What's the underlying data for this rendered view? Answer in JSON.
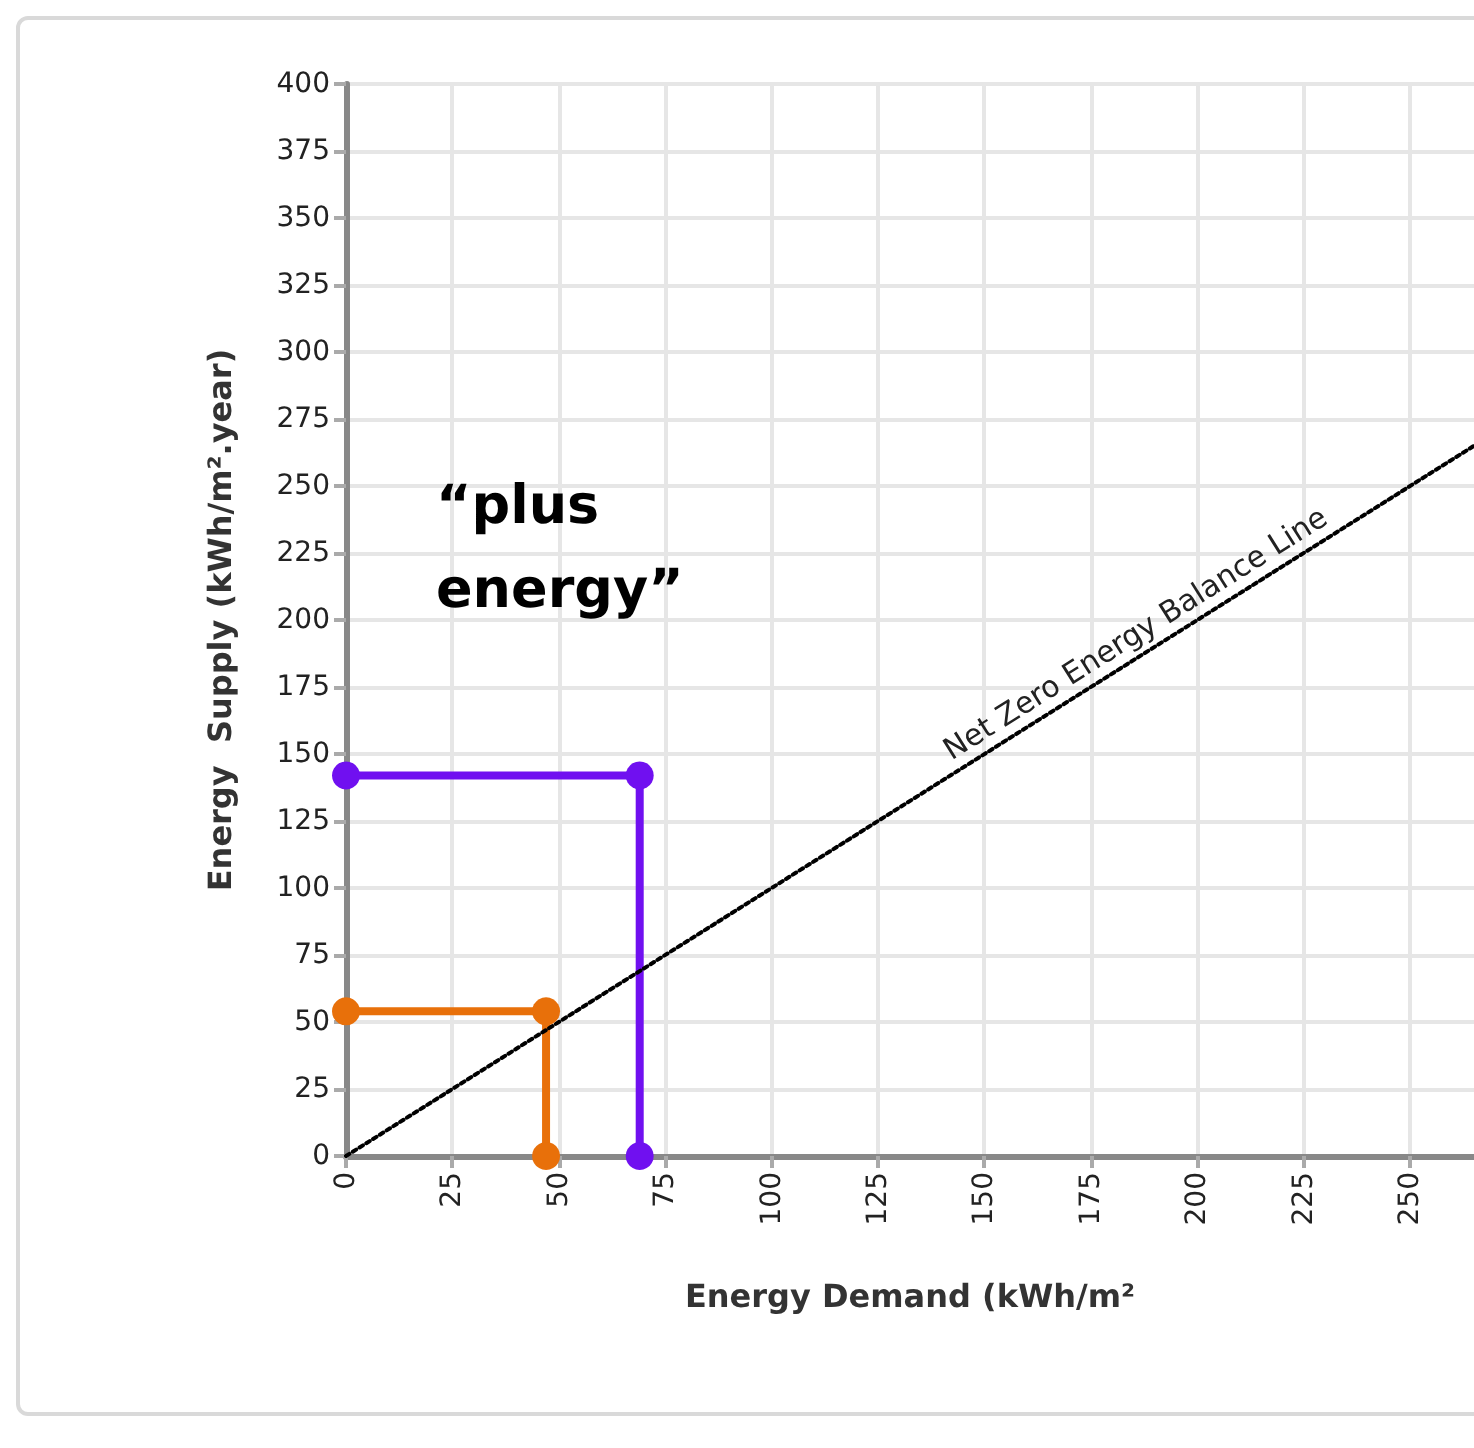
{
  "chart_data": {
    "type": "line",
    "xlabel": "Energy Demand (kWh/m²",
    "ylabel": "Energy  Supply (kWh/m².year)",
    "annotations": [
      "“plus energy”"
    ],
    "xlim": [
      0,
      265
    ],
    "ylim": [
      0,
      400
    ],
    "xticks": [
      0,
      25,
      50,
      75,
      100,
      125,
      150,
      175,
      200,
      225,
      250
    ],
    "yticks": [
      0,
      25,
      50,
      75,
      100,
      125,
      150,
      175,
      200,
      225,
      250,
      275,
      300,
      325,
      350,
      375,
      400
    ],
    "grid": true,
    "series": [
      {
        "color": "#e8700a",
        "x": [
          0,
          47,
          47
        ],
        "values": [
          54,
          54,
          0
        ],
        "marker": "circle",
        "line_style": "solid"
      },
      {
        "color": "#7010f0",
        "x": [
          0,
          69,
          69
        ],
        "values": [
          142,
          142,
          0
        ],
        "marker": "circle",
        "line_style": "solid"
      },
      {
        "name": "Net Zero Energy Balance Line",
        "color": "#000000",
        "x": [
          0,
          265
        ],
        "values": [
          0,
          265
        ],
        "marker": "none",
        "line_style": "dotted"
      }
    ]
  }
}
